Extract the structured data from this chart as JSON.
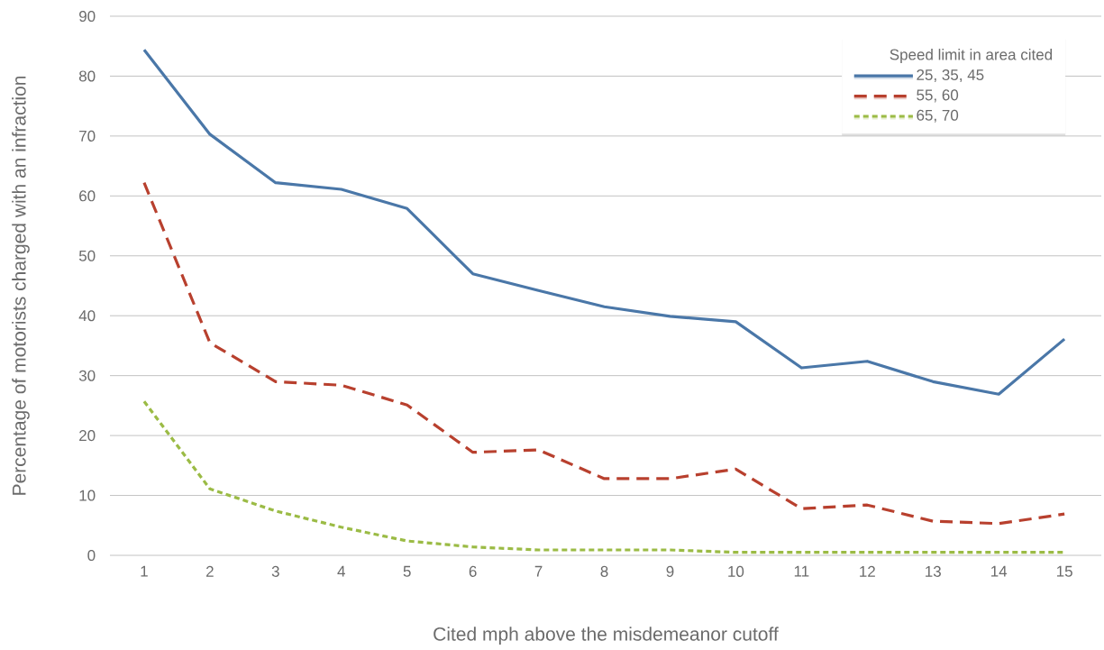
{
  "chart_data": {
    "type": "line",
    "xlabel": "Cited mph above the misdemeanor cutoff",
    "ylabel": "Percentage of motorists charged with an infraction",
    "legend_title": "Speed limit in area cited",
    "categories": [
      "1",
      "2",
      "3",
      "4",
      "5",
      "6",
      "7",
      "8",
      "9",
      "10",
      "11",
      "12",
      "13",
      "14",
      "15"
    ],
    "series": [
      {
        "name": "25, 35, 45",
        "color": "#4a77a8",
        "line_style": "solid",
        "values": [
          84.4,
          70.3,
          62.2,
          61.1,
          57.9,
          47.0,
          44.2,
          41.5,
          39.9,
          39.0,
          31.3,
          32.4,
          29.0,
          26.9,
          36.1
        ]
      },
      {
        "name": "55, 60",
        "color": "#b8402e",
        "line_style": "dashed",
        "values": [
          62.2,
          35.5,
          29.0,
          28.4,
          25.1,
          17.2,
          17.6,
          12.8,
          12.8,
          14.4,
          7.8,
          8.4,
          5.7,
          5.3,
          6.9
        ]
      },
      {
        "name": "65, 70",
        "color": "#9bbb45",
        "line_style": "dotted",
        "values": [
          25.7,
          11.1,
          7.4,
          4.7,
          2.4,
          1.4,
          0.9,
          0.9,
          0.9,
          0.5,
          0.5,
          0.5,
          0.5,
          0.5,
          0.5
        ]
      }
    ],
    "ylim": [
      0,
      90
    ],
    "yticks": [
      0,
      10,
      20,
      30,
      40,
      50,
      60,
      70,
      80,
      90
    ],
    "grid": "y",
    "legend": "top right",
    "marker": "none"
  }
}
